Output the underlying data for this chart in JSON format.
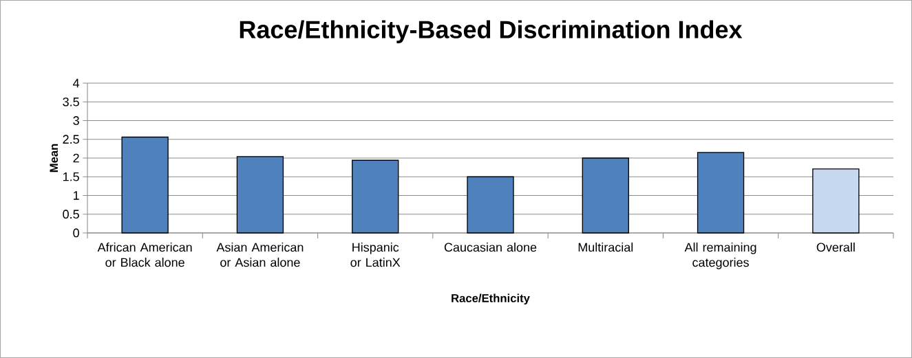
{
  "chart_data": {
    "type": "bar",
    "title": "Race/Ethnicity-Based Discrimination Index",
    "xlabel": "Race/Ethnicity",
    "ylabel": "Mean",
    "categories": [
      "African American or Black alone",
      "Asian American or Asian alone",
      "Hispanic or LatinX",
      "Caucasian alone",
      "Multiracial",
      "All remaining categories",
      "Overall"
    ],
    "values": [
      2.56,
      2.04,
      1.94,
      1.5,
      2.0,
      2.15,
      1.71
    ],
    "colors": [
      "#4f81bd",
      "#4f81bd",
      "#4f81bd",
      "#4f81bd",
      "#4f81bd",
      "#4f81bd",
      "#c6d9f1"
    ],
    "ylim": [
      0,
      4
    ],
    "yticks": [
      0,
      0.5,
      1,
      1.5,
      2,
      2.5,
      3,
      3.5,
      4
    ],
    "grid": "y"
  }
}
